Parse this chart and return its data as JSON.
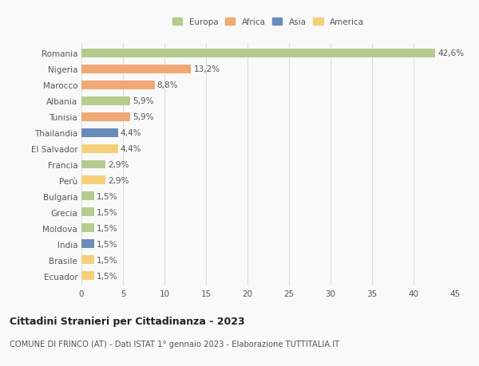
{
  "countries": [
    "Romania",
    "Nigeria",
    "Marocco",
    "Albania",
    "Tunisia",
    "Thailandia",
    "El Salvador",
    "Francia",
    "Perù",
    "Bulgaria",
    "Grecia",
    "Moldova",
    "India",
    "Brasile",
    "Ecuador"
  ],
  "values": [
    42.6,
    13.2,
    8.8,
    5.9,
    5.9,
    4.4,
    4.4,
    2.9,
    2.9,
    1.5,
    1.5,
    1.5,
    1.5,
    1.5,
    1.5
  ],
  "labels": [
    "42,6%",
    "13,2%",
    "8,8%",
    "5,9%",
    "5,9%",
    "4,4%",
    "4,4%",
    "2,9%",
    "2,9%",
    "1,5%",
    "1,5%",
    "1,5%",
    "1,5%",
    "1,5%",
    "1,5%"
  ],
  "colors": [
    "#b5cc8e",
    "#f0a875",
    "#f0a875",
    "#b5cc8e",
    "#f0a875",
    "#6b8cba",
    "#f5d07a",
    "#b5cc8e",
    "#f5d07a",
    "#b5cc8e",
    "#b5cc8e",
    "#b5cc8e",
    "#6b8cba",
    "#f5d07a",
    "#f5d07a"
  ],
  "legend_labels": [
    "Europa",
    "Africa",
    "Asia",
    "America"
  ],
  "legend_colors": [
    "#b5cc8e",
    "#f0a875",
    "#6b8cba",
    "#f5d07a"
  ],
  "title": "Cittadini Stranieri per Cittadinanza - 2023",
  "subtitle": "COMUNE DI FRINCO (AT) - Dati ISTAT 1° gennaio 2023 - Elaborazione TUTTITALIA.IT",
  "xlim": [
    0,
    45
  ],
  "xticks": [
    0,
    5,
    10,
    15,
    20,
    25,
    30,
    35,
    40,
    45
  ],
  "background_color": "#f9f9f9",
  "grid_color": "#dddddd",
  "bar_height": 0.55,
  "label_fontsize": 7.5,
  "tick_fontsize": 7.5,
  "title_fontsize": 9,
  "subtitle_fontsize": 7.2
}
